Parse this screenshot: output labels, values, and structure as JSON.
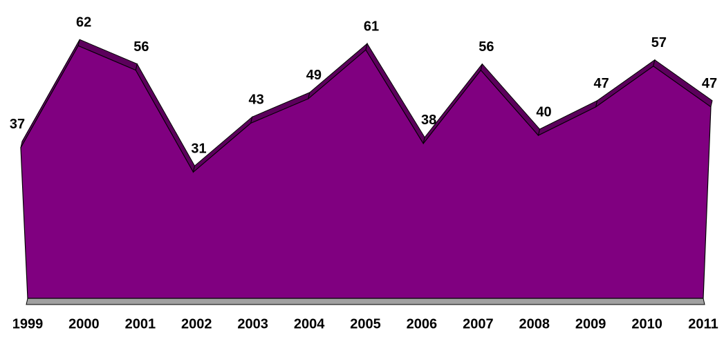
{
  "chart_data": {
    "type": "area3d",
    "categories": [
      "1999",
      "2000",
      "2001",
      "2002",
      "2003",
      "2004",
      "2005",
      "2006",
      "2007",
      "2008",
      "2009",
      "2010",
      "2011"
    ],
    "values": [
      37,
      62,
      56,
      31,
      43,
      49,
      61,
      38,
      56,
      40,
      47,
      57,
      47
    ],
    "color": "#800080",
    "ylim": [
      0,
      72
    ]
  }
}
